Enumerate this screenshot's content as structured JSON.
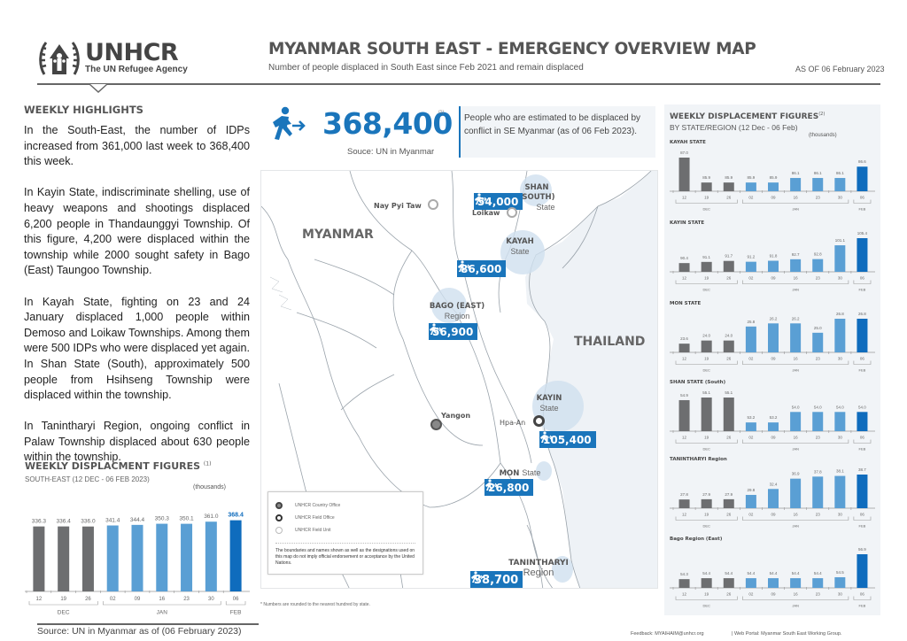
{
  "header": {
    "logo_main": "UNHCR",
    "logo_sub": "The UN Refugee Agency",
    "title": "MYANMAR SOUTH EAST - EMERGENCY OVERVIEW MAP",
    "subtitle": "Number of people displaced in South East since Feb 2021 and remain displaced",
    "as_of": "AS OF 06 February 2023"
  },
  "highlights": {
    "title": "WEEKLY HIGHLIGHTS",
    "paragraphs": [
      "In the South-East, the number of IDPs increased from 361,000 last week to 368,400 this week.",
      "In Kayin State, indiscriminate shelling, use of heavy weapons and shootings displaced 6,200 people in Thandaunggyi Township. Of this figure, 4,200 were displaced within the township while 2000 sought safety in Bago (East) Taungoo Township.",
      "In Kayah State, fighting on 23 and 24 January displaced 1,000 people within Demoso and Loikaw Townships. Among them were 500 IDPs who were displaced yet again. In Shan State (South), approximately 500 people from Hsihseng Township were displaced within the township.",
      "In Tanintharyi Region, ongoing conflict in Palaw Township displaced about 630 people within the township."
    ]
  },
  "kpi": {
    "value": "368,400",
    "note": "(1)",
    "source": "Souce: UN in Myanmar",
    "description": "People who are estimated to be displaced by conflict in SE Myanmar (as of 06 Feb 2023).",
    "icon": "displaced-person-icon"
  },
  "map": {
    "country_labels": {
      "myanmar": "MYANMAR",
      "thailand": "THAILAND"
    },
    "cities": [
      {
        "name": "Nay Pyi Taw",
        "type": "field-unit"
      },
      {
        "name": "Loikaw",
        "type": "field-unit"
      },
      {
        "name": "Yangon",
        "type": "country-office"
      },
      {
        "name": "Hpa-An",
        "type": "field-office"
      }
    ],
    "states": [
      {
        "name": "SHAN (SOUTH)",
        "kind": "State",
        "count": "54,000"
      },
      {
        "name": "KAYAH",
        "kind": "State",
        "count": "86,600"
      },
      {
        "name": "BAGO (EAST)",
        "kind": "Region",
        "count": "56,900"
      },
      {
        "name": "KAYIN",
        "kind": "State",
        "count": "105,400"
      },
      {
        "name": "MON",
        "kind": "State",
        "count": "26,800"
      },
      {
        "name": "TANINTHARYI",
        "kind": "Region",
        "count": "38,700"
      }
    ],
    "legend": {
      "items": [
        {
          "label": "UNHCR Country Office"
        },
        {
          "label": "UNHCR Field Office"
        },
        {
          "label": "UNHCR Field Unit"
        }
      ],
      "disclaimer": "The boundaries and names shown as well as the designations used on this map do not imply official endorsement or acceptance by the United Nations."
    },
    "footnote": "* Numbers are rounded to the nearest hundred by state."
  },
  "colors": {
    "dec": "#6d6e70",
    "jan": "#5a9fd4",
    "feb": "#0f6cbd",
    "accent": "#1a75bb",
    "panel_bg": "#f1f4f7"
  },
  "chart_data": [
    {
      "type": "bar",
      "title": "WEEKLY DISPLACMENT FIGURES",
      "title_note": "(1)",
      "subtitle": "SOUTH-EAST (12 DEC - 06 FEB 2023)",
      "ylabel": "(thousands)",
      "categories": [
        "12",
        "19",
        "26",
        "02",
        "09",
        "16",
        "23",
        "30",
        "06"
      ],
      "months": [
        {
          "label": "DEC",
          "span": 3
        },
        {
          "label": "JAN",
          "span": 5
        },
        {
          "label": "FEB",
          "span": 1
        }
      ],
      "values": [
        336.3,
        336.4,
        336.0,
        341.4,
        344.4,
        350.3,
        350.1,
        361.0,
        368.4
      ],
      "value_labels": [
        "336.3",
        "336.4",
        "336.0",
        "341.4",
        "344.4",
        "350.3",
        "350.1",
        "361.0",
        "368.4"
      ],
      "ylim": [
        0,
        380
      ]
    },
    {
      "type": "bar",
      "title": "WEEKLY DISPLACEMENT FIGURES",
      "title_note": "(2)",
      "subtitle": "BY STATE/REGION (12 Dec - 06 Feb)",
      "ylabel": "(thousands)",
      "categories": [
        "12",
        "19",
        "26",
        "02",
        "09",
        "16",
        "23",
        "30",
        "06"
      ],
      "months": [
        {
          "label": "DEC",
          "span": 3
        },
        {
          "label": "JAN",
          "span": 5
        },
        {
          "label": "FEB",
          "span": 1
        }
      ],
      "series": [
        {
          "name": "KAYAH STATE",
          "values": [
            87.0,
            85.9,
            85.9,
            85.9,
            85.9,
            86.1,
            86.1,
            86.1,
            86.6
          ]
        },
        {
          "name": "KAYIN STATE",
          "values": [
            90.4,
            91.1,
            91.7,
            91.2,
            91.8,
            92.7,
            92.8,
            101.1,
            105.4
          ]
        },
        {
          "name": "MON STATE",
          "values": [
            23.6,
            24.0,
            24.0,
            25.8,
            26.2,
            26.2,
            25.0,
            26.8,
            26.8
          ]
        },
        {
          "name": "SHAN STATE (South)",
          "values": [
            54.9,
            55.1,
            55.1,
            53.2,
            53.2,
            54.0,
            54.0,
            54.0,
            54.0
          ]
        },
        {
          "name": "TANINTHARYI Region",
          "values": [
            27.8,
            27.9,
            27.9,
            29.8,
            32.4,
            36.9,
            37.8,
            38.1,
            38.7
          ]
        },
        {
          "name": "Bago Region (East)",
          "values": [
            54.3,
            54.4,
            54.4,
            54.4,
            54.4,
            54.4,
            54.4,
            54.5,
            56.9
          ]
        }
      ]
    }
  ],
  "footer": {
    "source": "Source: UN in Myanmar as of (06 February 2023)",
    "feedback": "Feedback: MYAIHAIM@unhcr.org",
    "portal": "| Web Portal:  Myanmar South East Working Group."
  }
}
